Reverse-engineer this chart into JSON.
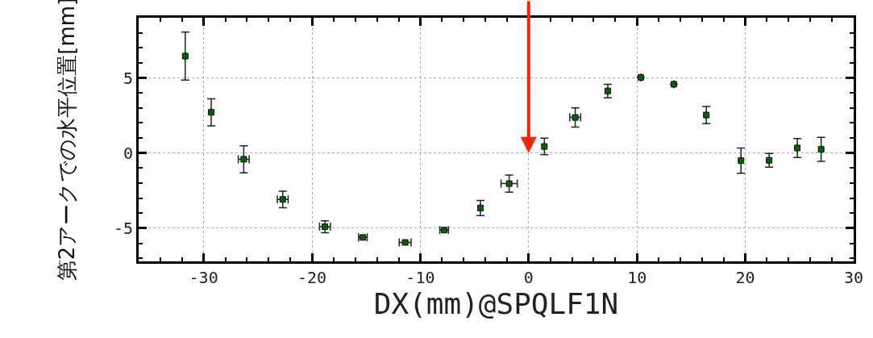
{
  "chart_data": {
    "type": "scatter",
    "xlabel": "DX(mm)@SPQLF1N",
    "ylabel": "第2アークでの水平位置[mm]",
    "x": [
      -31.7,
      -29.3,
      -26.3,
      -22.7,
      -18.8,
      -15.3,
      -11.4,
      -7.8,
      -4.45,
      -1.8,
      1.45,
      4.3,
      7.3,
      10.35,
      13.4,
      16.4,
      19.6,
      22.2,
      24.8,
      27.0
    ],
    "series": [
      {
        "color": "#006400",
        "values": [
          6.45,
          2.71,
          -0.41,
          -3.08,
          -4.9,
          -5.61,
          -5.94,
          -5.12,
          -3.65,
          -2.03,
          0.44,
          2.37,
          4.13,
          5.03,
          4.58,
          2.53,
          -0.5,
          -0.48,
          0.34,
          0.25
        ],
        "errors": [
          1.6,
          0.9,
          0.9,
          0.55,
          0.4,
          null,
          null,
          null,
          0.5,
          0.57,
          0.55,
          0.64,
          0.45,
          null,
          null,
          0.57,
          0.84,
          0.46,
          0.63,
          0.8
        ],
        "xerrors": [
          null,
          null,
          0.5,
          0.5,
          0.5,
          0.4,
          0.55,
          0.4,
          null,
          0.75,
          null,
          0.5,
          null,
          null,
          null,
          null,
          null,
          null,
          null,
          null
        ]
      }
    ],
    "xlim": [
      -36,
      30
    ],
    "xticks": [
      -30,
      -20,
      -10,
      0,
      10,
      20,
      30
    ],
    "ylim": [
      -7.2,
      9
    ],
    "yticks": [
      -5,
      0,
      5
    ],
    "grid": true,
    "marker": "square"
  }
}
